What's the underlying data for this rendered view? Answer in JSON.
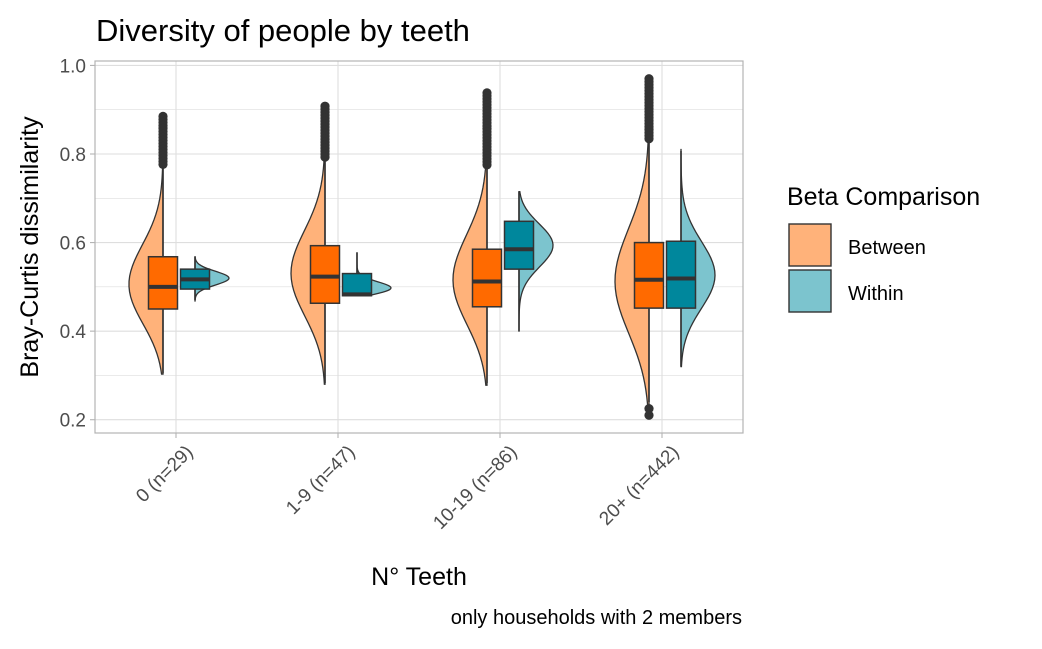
{
  "chart_data": {
    "type": "boxplot",
    "title": "Diversity of people by teeth",
    "xlabel": "N° Teeth",
    "ylabel": "Bray-Curtis dissimilarity",
    "caption": "only households with 2 members",
    "ylim": [
      0.17,
      1.01
    ],
    "yticks": [
      "0.2",
      "0.4",
      "0.6",
      "0.8",
      "1.0"
    ],
    "categories": [
      "0 (n=29)",
      "1-9 (n=47)",
      "10-19 (n=86)",
      "20+ (n=442)"
    ],
    "grid": true,
    "legend": {
      "title": "Beta Comparison",
      "position": "right",
      "entries": [
        "Between",
        "Within"
      ]
    },
    "colors": {
      "between_box": "#FF6A00",
      "between_violin": "#FFB27A",
      "within_box": "#00879C",
      "within_violin": "#7CC4CE",
      "outline": "#333333",
      "grid": "#DEDEDE"
    },
    "series": [
      {
        "name": "Between",
        "boxes": [
          {
            "whisker_low": 0.305,
            "q1": 0.45,
            "median": 0.5,
            "q3": 0.568,
            "whisker_high": 0.77,
            "outlier_min": 0.77,
            "outlier_max": 0.885
          },
          {
            "whisker_low": 0.283,
            "q1": 0.463,
            "median": 0.523,
            "q3": 0.593,
            "whisker_high": 0.79,
            "outlier_min": 0.79,
            "outlier_max": 0.908
          },
          {
            "whisker_low": 0.283,
            "q1": 0.455,
            "median": 0.512,
            "q3": 0.585,
            "whisker_high": 0.77,
            "outlier_min": 0.77,
            "outlier_max": 0.938
          },
          {
            "whisker_low": 0.24,
            "q1": 0.452,
            "median": 0.516,
            "q3": 0.6,
            "whisker_high": 0.83,
            "outlier_min": 0.83,
            "outlier_max": 0.97,
            "outliers_low": [
              0.21,
              0.225
            ]
          }
        ],
        "violins": [
          {
            "min": 0.303,
            "max": 0.885,
            "mode": 0.49
          },
          {
            "min": 0.28,
            "max": 0.905,
            "mode": 0.52
          },
          {
            "min": 0.278,
            "max": 0.935,
            "mode": 0.5
          },
          {
            "min": 0.205,
            "max": 0.97,
            "mode": 0.5
          }
        ]
      },
      {
        "name": "Within",
        "boxes": [
          {
            "whisker_low": 0.47,
            "q1": 0.495,
            "median": 0.517,
            "q3": 0.54,
            "whisker_high": 0.568
          },
          {
            "whisker_low": 0.48,
            "q1": 0.48,
            "median": 0.483,
            "q3": 0.53,
            "whisker_high": 0.578
          },
          {
            "whisker_low": 0.4,
            "q1": 0.54,
            "median": 0.585,
            "q3": 0.648,
            "whisker_high": 0.715
          },
          {
            "whisker_low": 0.32,
            "q1": 0.452,
            "median": 0.519,
            "q3": 0.603,
            "whisker_high": 0.807
          }
        ],
        "violins": [
          {
            "min": 0.468,
            "max": 0.568,
            "mode": 0.52
          },
          {
            "min": 0.48,
            "max": 0.578,
            "mode": 0.49
          },
          {
            "min": 0.4,
            "max": 0.715,
            "mode": 0.6
          },
          {
            "min": 0.32,
            "max": 0.81,
            "mode": 0.52
          }
        ]
      }
    ]
  }
}
